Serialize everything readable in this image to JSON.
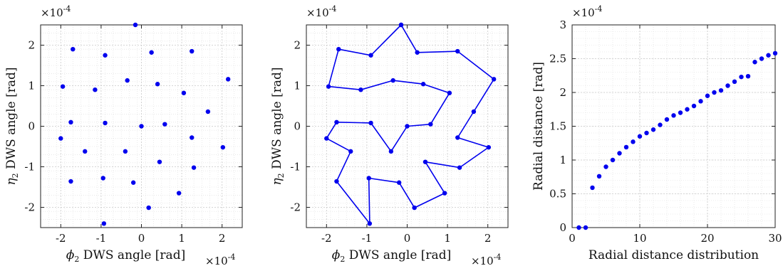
{
  "colors": {
    "marker": "#0000ee",
    "line": "#0000ee",
    "axes": "#222222",
    "grid": "#dcdcdc"
  },
  "chart_data": [
    {
      "type": "scatter",
      "xlabel_math": "ϕ",
      "xlabel_sub": "2",
      "xlabel_text": " DWS angle [rad]",
      "ylabel_math": "η",
      "ylabel_sub": "2",
      "ylabel_text": " DWS angle [rad]",
      "x_exponent": "×10",
      "x_exponent_power": "-4",
      "y_exponent": "×10",
      "y_exponent_power": "-4",
      "xlim": [
        -2.5,
        2.5
      ],
      "ylim": [
        -2.5,
        2.5
      ],
      "xticks": [
        -2,
        -1,
        0,
        1,
        2
      ],
      "yticks": [
        -2,
        -1,
        0,
        1,
        2
      ],
      "xtick_labels": [
        "-2",
        "-1",
        "0",
        "1",
        "2"
      ],
      "ytick_labels": [
        "-2",
        "-1",
        "0",
        "1",
        "2"
      ],
      "grid": true,
      "minor_grid": true,
      "points": [
        [
          -0.15,
          2.5
        ],
        [
          -1.7,
          1.9
        ],
        [
          -0.9,
          1.75
        ],
        [
          0.25,
          1.82
        ],
        [
          1.25,
          1.85
        ],
        [
          -1.95,
          0.98
        ],
        [
          -1.15,
          0.9
        ],
        [
          -0.35,
          1.13
        ],
        [
          0.4,
          1.04
        ],
        [
          1.05,
          0.82
        ],
        [
          2.15,
          1.16
        ],
        [
          1.65,
          0.36
        ],
        [
          -1.75,
          0.1
        ],
        [
          -0.9,
          0.08
        ],
        [
          0.0,
          0.0
        ],
        [
          0.58,
          0.05
        ],
        [
          1.25,
          -0.28
        ],
        [
          2.02,
          -0.52
        ],
        [
          -2.0,
          -0.3
        ],
        [
          -1.4,
          -0.62
        ],
        [
          -0.4,
          -0.62
        ],
        [
          0.45,
          -0.88
        ],
        [
          1.3,
          -1.02
        ],
        [
          -0.95,
          -1.28
        ],
        [
          -0.2,
          -1.39
        ],
        [
          -1.75,
          -1.36
        ],
        [
          0.93,
          -1.65
        ],
        [
          0.18,
          -2.01
        ],
        [
          -0.93,
          -2.4
        ]
      ]
    },
    {
      "type": "line",
      "xlabel_math": "ϕ",
      "xlabel_sub": "2",
      "xlabel_text": " DWS angle [rad]",
      "ylabel_math": "η",
      "ylabel_sub": "2",
      "ylabel_text": " DWS angle [rad]",
      "x_exponent": "×10",
      "x_exponent_power": "-4",
      "y_exponent": "×10",
      "y_exponent_power": "-4",
      "xlim": [
        -2.5,
        2.5
      ],
      "ylim": [
        -2.5,
        2.5
      ],
      "xticks": [
        -2,
        -1,
        0,
        1,
        2
      ],
      "yticks": [
        -2,
        -1,
        0,
        1,
        2
      ],
      "xtick_labels": [
        "-2",
        "-1",
        "0",
        "1",
        "2"
      ],
      "ytick_labels": [
        "-2",
        "-1",
        "0",
        "1",
        "2"
      ],
      "grid": true,
      "minor_grid": true,
      "points": [
        [
          -0.15,
          2.5
        ],
        [
          0.25,
          1.82
        ],
        [
          1.25,
          1.85
        ],
        [
          2.15,
          1.16
        ],
        [
          1.65,
          0.36
        ],
        [
          1.25,
          -0.28
        ],
        [
          2.02,
          -0.52
        ],
        [
          1.3,
          -1.02
        ],
        [
          0.45,
          -0.88
        ],
        [
          0.93,
          -1.65
        ],
        [
          0.18,
          -2.01
        ],
        [
          -0.2,
          -1.39
        ],
        [
          -0.95,
          -1.28
        ],
        [
          -0.93,
          -2.4
        ],
        [
          -1.75,
          -1.36
        ],
        [
          -1.4,
          -0.62
        ],
        [
          -2.0,
          -0.3
        ],
        [
          -1.75,
          0.1
        ],
        [
          -0.9,
          0.08
        ],
        [
          -0.4,
          -0.62
        ],
        [
          0.0,
          0.0
        ],
        [
          0.58,
          0.05
        ],
        [
          1.05,
          0.82
        ],
        [
          0.4,
          1.04
        ],
        [
          -0.35,
          1.13
        ],
        [
          -1.15,
          0.9
        ],
        [
          -1.95,
          0.98
        ],
        [
          -1.7,
          1.9
        ],
        [
          -0.9,
          1.75
        ],
        [
          -0.15,
          2.5
        ]
      ]
    },
    {
      "type": "scatter",
      "xlabel_text": "Radial distance distribution",
      "ylabel_text": "Radial distance [rad]",
      "y_exponent": "×10",
      "y_exponent_power": "-4",
      "xlim": [
        0,
        30
      ],
      "ylim": [
        0,
        3
      ],
      "xticks": [
        0,
        10,
        20,
        30
      ],
      "yticks": [
        0,
        0.5,
        1,
        1.5,
        2,
        2.5,
        3
      ],
      "xtick_labels": [
        "0",
        "10",
        "20",
        "30"
      ],
      "ytick_labels": [
        "0",
        "0.5",
        "1",
        "1.5",
        "2",
        "2.5",
        "3"
      ],
      "grid": true,
      "minor_grid": true,
      "points": [
        [
          1,
          0.0
        ],
        [
          2,
          0.0
        ],
        [
          3,
          0.59
        ],
        [
          4,
          0.76
        ],
        [
          5,
          0.9
        ],
        [
          6,
          1.0
        ],
        [
          7,
          1.1
        ],
        [
          8,
          1.19
        ],
        [
          9,
          1.27
        ],
        [
          10,
          1.35
        ],
        [
          11,
          1.4
        ],
        [
          12,
          1.45
        ],
        [
          13,
          1.52
        ],
        [
          14,
          1.6
        ],
        [
          15,
          1.66
        ],
        [
          16,
          1.7
        ],
        [
          17,
          1.75
        ],
        [
          18,
          1.8
        ],
        [
          19,
          1.87
        ],
        [
          20,
          1.95
        ],
        [
          21,
          2.0
        ],
        [
          22,
          2.03
        ],
        [
          23,
          2.1
        ],
        [
          24,
          2.16
        ],
        [
          25,
          2.23
        ],
        [
          26,
          2.24
        ],
        [
          27,
          2.45
        ],
        [
          28,
          2.5
        ],
        [
          29,
          2.55
        ],
        [
          30,
          2.58
        ]
      ]
    }
  ]
}
